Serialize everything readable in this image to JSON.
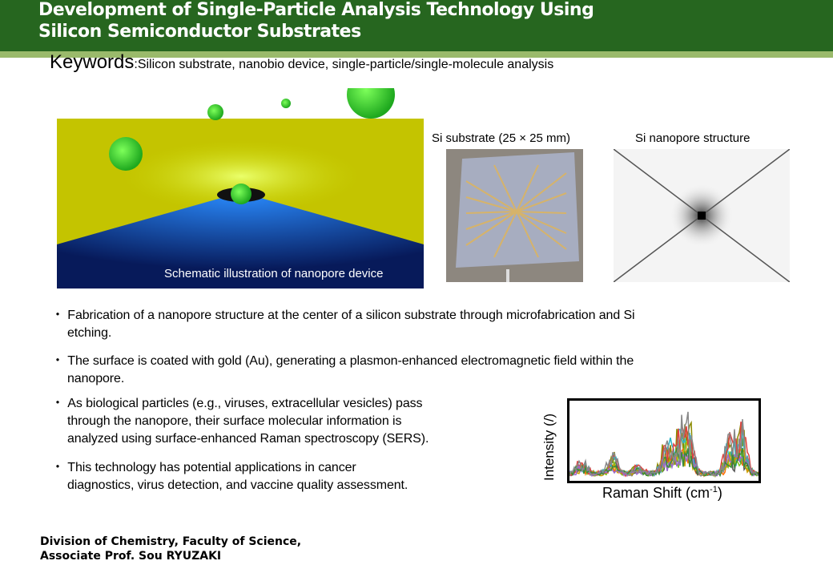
{
  "header": {
    "title_line1": "Development of Single-Particle Analysis Technology Using",
    "title_line2": "Silicon Semiconductor Substrates",
    "colors": {
      "band": "#26661f",
      "stripe": "#9aba6b"
    }
  },
  "keywords": {
    "label": "Keywords",
    "separator": ":",
    "value": "Silicon substrate, nanobio device, single-particle/single-molecule analysis"
  },
  "figures": {
    "schematic_caption": "Schematic illustration of nanopore device",
    "substrate_caption": "Si substrate (25 × 25 mm)",
    "nanopore_caption": "Si nanopore structure"
  },
  "bullets": [
    {
      "marker": "・",
      "line1": "Fabrication of a nanopore structure at the center of a silicon substrate through microfabrication and Si",
      "line2": "etching."
    },
    {
      "marker": "・",
      "line1": "The surface is coated with gold (Au), generating a plasmon-enhanced electromagnetic field within the",
      "line2": "nanopore."
    },
    {
      "marker": "・",
      "line1": "As biological particles (e.g., viruses, extracellular vesicles) pass",
      "line2": "through the nanopore, their surface molecular information is",
      "line3": "analyzed using surface-enhanced Raman spectroscopy (SERS)."
    },
    {
      "marker": "・",
      "line1": "This technology has potential applications in cancer",
      "line2": "diagnostics, virus detection, and vaccine quality assessment."
    }
  ],
  "spectrum": {
    "ylabel": "Intensity (/)",
    "xlabel_main": "Raman Shift (cm",
    "xlabel_sup": "-1",
    "xlabel_end": ")"
  },
  "footer": {
    "line1": "Division of Chemistry, Faculty of Science,",
    "line2": "Associate Prof. Sou RYUZAKI"
  }
}
